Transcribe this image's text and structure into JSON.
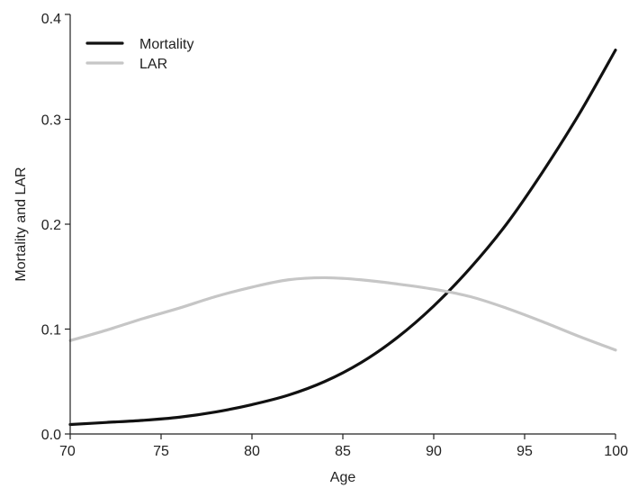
{
  "chart_data": {
    "type": "line",
    "title": "",
    "xlabel": "Age",
    "ylabel": "Mortality and LAR",
    "xlim": [
      70,
      100
    ],
    "ylim": [
      0,
      0.4
    ],
    "xticks": [
      "70",
      "75",
      "80",
      "85",
      "90",
      "95",
      "100"
    ],
    "yticks": [
      "0.0",
      "0.1",
      "0.2",
      "0.3",
      "0.4"
    ],
    "grid": false,
    "legend_position": "top-left",
    "series": [
      {
        "name": "Mortality",
        "color": "#111111",
        "x": [
          70,
          72,
          74,
          76,
          78,
          80,
          82,
          84,
          86,
          88,
          90,
          92,
          94,
          96,
          98,
          100
        ],
        "y": [
          0.009,
          0.011,
          0.013,
          0.016,
          0.021,
          0.028,
          0.037,
          0.05,
          0.068,
          0.092,
          0.122,
          0.158,
          0.2,
          0.25,
          0.305,
          0.366
        ]
      },
      {
        "name": "LAR",
        "color": "#c6c6c6",
        "x": [
          70,
          72,
          74,
          76,
          78,
          80,
          82,
          84,
          86,
          88,
          90,
          92,
          94,
          96,
          98,
          100
        ],
        "y": [
          0.089,
          0.099,
          0.11,
          0.12,
          0.131,
          0.14,
          0.147,
          0.149,
          0.147,
          0.143,
          0.138,
          0.131,
          0.12,
          0.107,
          0.093,
          0.08
        ]
      }
    ]
  }
}
